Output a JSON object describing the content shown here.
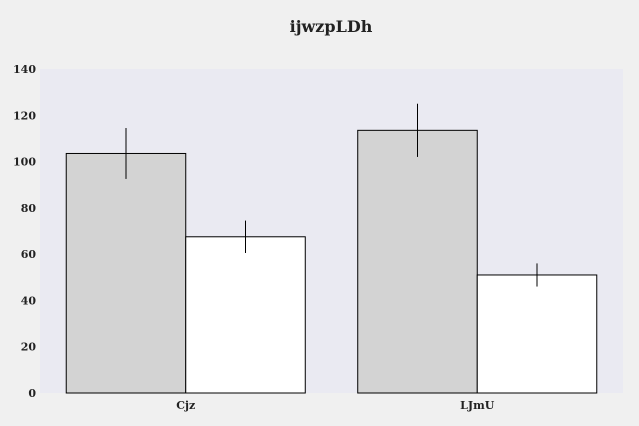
{
  "chart_data": {
    "type": "bar",
    "title": "ijwzpLDh",
    "xlabel": "",
    "ylabel": "",
    "categories": [
      "Cjz",
      "LJmU"
    ],
    "series": [
      {
        "values": [
          103.5,
          113.5
        ],
        "errors": [
          11,
          11.5
        ],
        "color": "#d3d3d3"
      },
      {
        "values": [
          67.5,
          51
        ],
        "errors": [
          7,
          5
        ],
        "color": "#ffffff"
      }
    ],
    "ylim": [
      0,
      140
    ],
    "yticks": [
      0,
      20,
      40,
      60,
      80,
      100,
      120,
      140
    ],
    "grid": false,
    "plot_background": "#eaeaf2",
    "page_background": "#f0f0f0"
  }
}
